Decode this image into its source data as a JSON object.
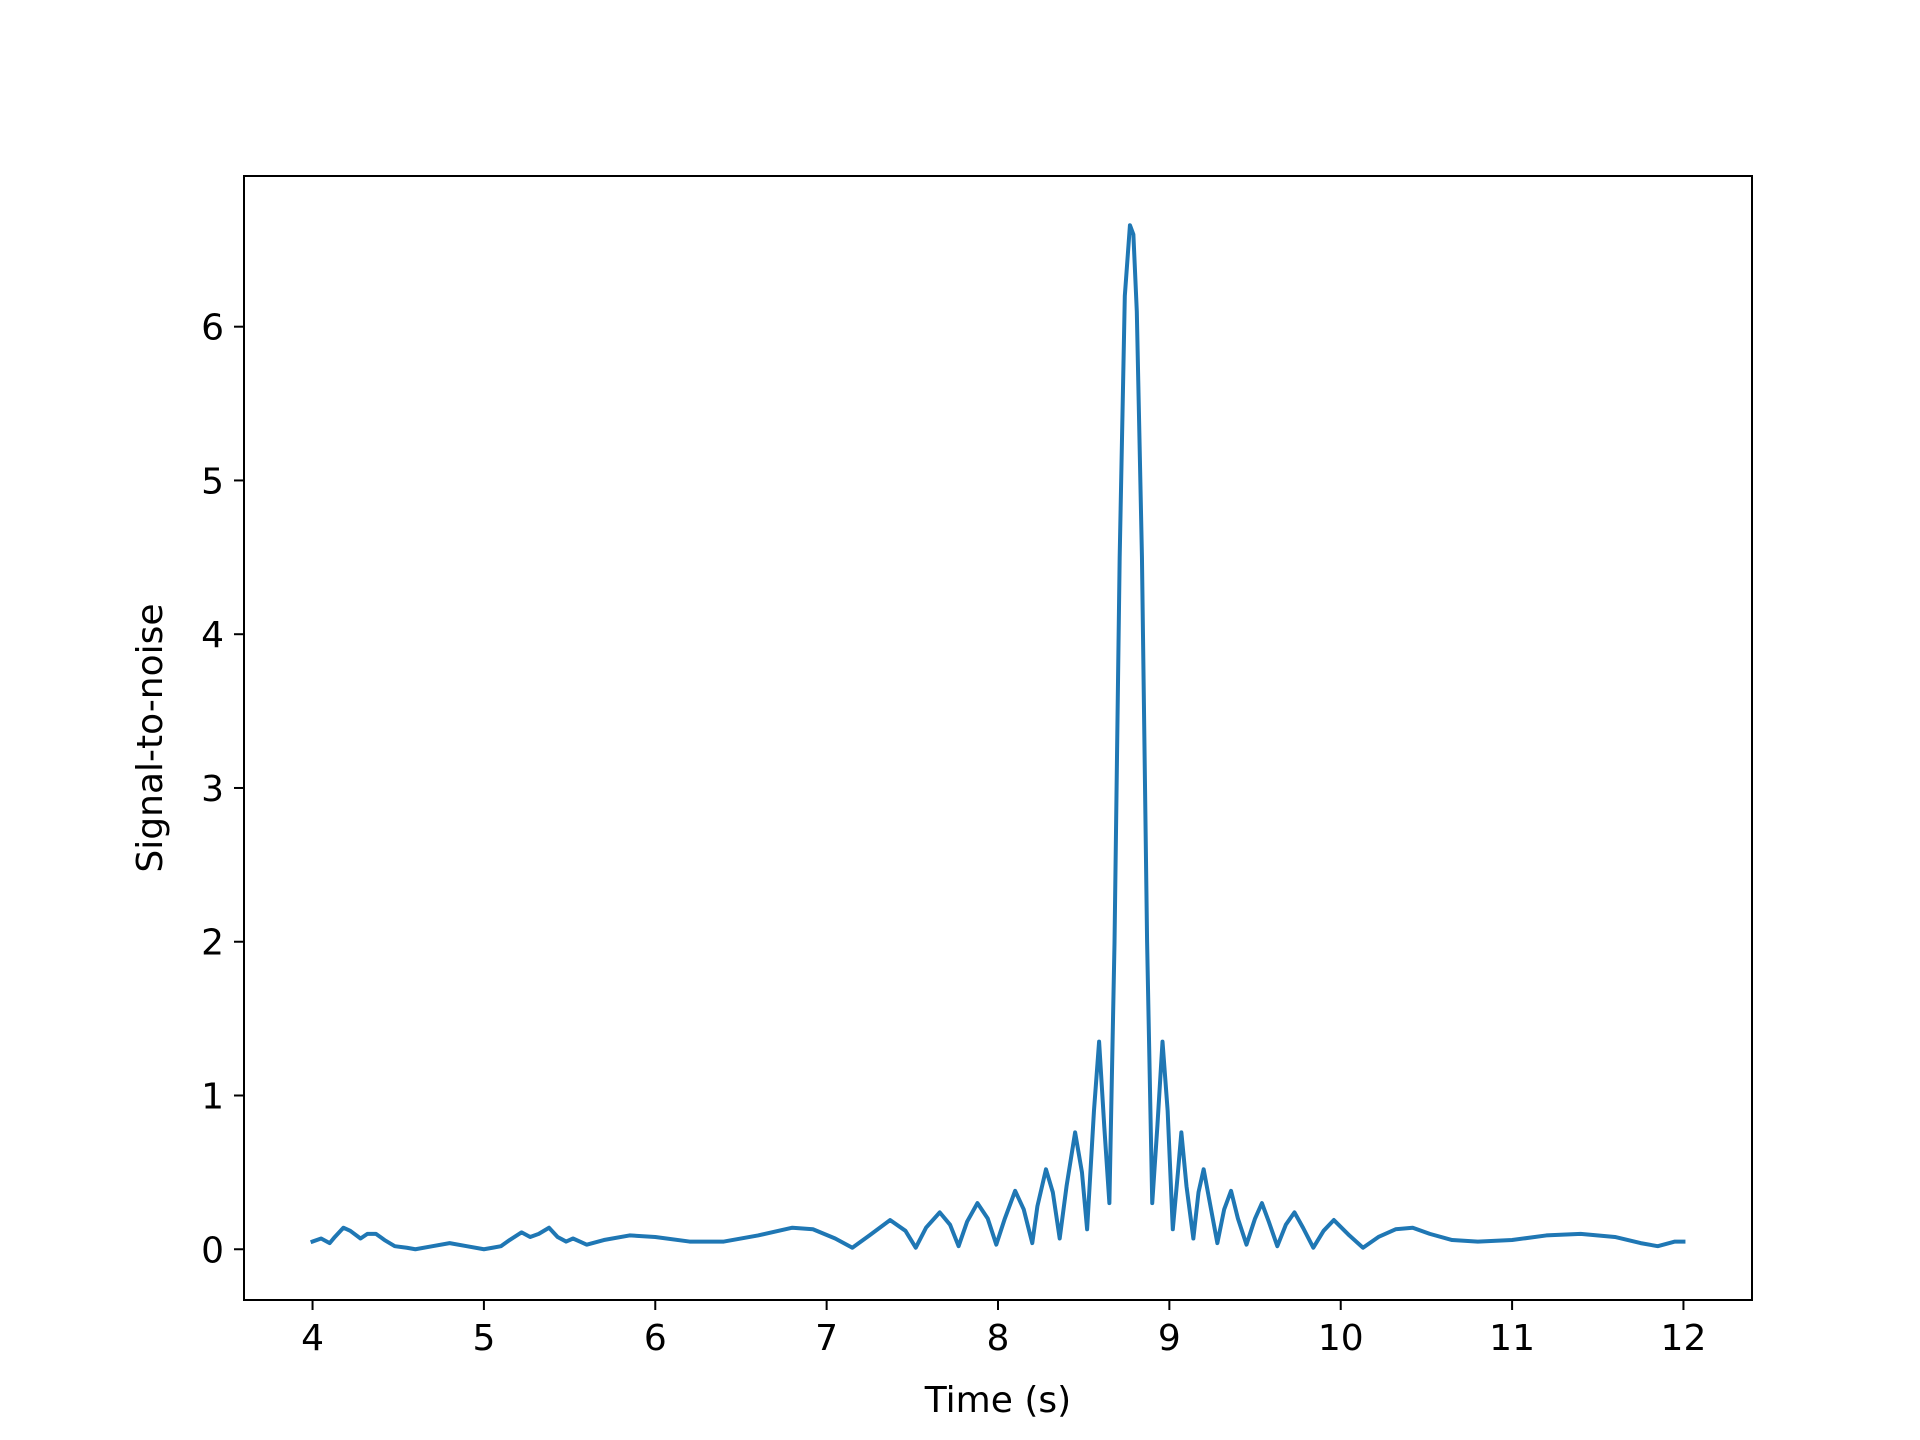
{
  "chart_data": {
    "type": "line",
    "title": "",
    "xlabel": "Time (s)",
    "ylabel": "Signal-to-noise",
    "xlim": [
      3.6,
      12.4
    ],
    "ylim": [
      -0.33,
      6.98
    ],
    "xticks": [
      4,
      5,
      6,
      7,
      8,
      9,
      10,
      11,
      12
    ],
    "xtick_labels": [
      "4",
      "5",
      "6",
      "7",
      "8",
      "9",
      "10",
      "11",
      "12"
    ],
    "yticks": [
      0,
      1,
      2,
      3,
      4,
      5,
      6
    ],
    "ytick_labels": [
      "0",
      "1",
      "2",
      "3",
      "4",
      "5",
      "6"
    ],
    "grid": false,
    "line_color": "#1f77b4",
    "series": [
      {
        "x": [
          4.0,
          4.05,
          4.1,
          4.13,
          4.18,
          4.22,
          4.28,
          4.32,
          4.37,
          4.42,
          4.48,
          4.55,
          4.6,
          4.7,
          4.8,
          4.9,
          5.0,
          5.05,
          5.1,
          5.15,
          5.22,
          5.27,
          5.32,
          5.38,
          5.43,
          5.48,
          5.52,
          5.56,
          5.6,
          5.7,
          5.85,
          6.0,
          6.2,
          6.4,
          6.6,
          6.8,
          6.92,
          7.05,
          7.15,
          7.25,
          7.37,
          7.46,
          7.52,
          7.58,
          7.66,
          7.72,
          7.77,
          7.82,
          7.88,
          7.94,
          7.99,
          8.04,
          8.1,
          8.15,
          8.2,
          8.23,
          8.28,
          8.32,
          8.36,
          8.4,
          8.45,
          8.49,
          8.52,
          8.56,
          8.59,
          8.62,
          8.65,
          8.68,
          8.71,
          8.74,
          8.77,
          8.79,
          8.81,
          8.84,
          8.87,
          8.9,
          8.93,
          8.96,
          8.99,
          9.02,
          9.05,
          9.07,
          9.1,
          9.14,
          9.17,
          9.2,
          9.24,
          9.28,
          9.32,
          9.36,
          9.4,
          9.45,
          9.5,
          9.54,
          9.58,
          9.63,
          9.68,
          9.73,
          9.78,
          9.84,
          9.9,
          9.96,
          10.05,
          10.13,
          10.22,
          10.32,
          10.42,
          10.52,
          10.65,
          10.8,
          11.0,
          11.2,
          11.4,
          11.6,
          11.75,
          11.85,
          11.95,
          12.0
        ],
        "y": [
          0.05,
          0.07,
          0.04,
          0.08,
          0.14,
          0.12,
          0.07,
          0.1,
          0.1,
          0.06,
          0.02,
          0.01,
          0.0,
          0.02,
          0.04,
          0.02,
          0.0,
          0.01,
          0.02,
          0.06,
          0.11,
          0.08,
          0.1,
          0.14,
          0.08,
          0.05,
          0.07,
          0.05,
          0.03,
          0.06,
          0.09,
          0.08,
          0.05,
          0.05,
          0.09,
          0.14,
          0.13,
          0.07,
          0.01,
          0.09,
          0.19,
          0.12,
          0.01,
          0.14,
          0.24,
          0.16,
          0.02,
          0.18,
          0.3,
          0.2,
          0.03,
          0.2,
          0.38,
          0.26,
          0.04,
          0.28,
          0.52,
          0.37,
          0.07,
          0.41,
          0.76,
          0.5,
          0.13,
          0.9,
          1.35,
          0.8,
          0.3,
          2.0,
          4.5,
          6.2,
          6.66,
          6.6,
          6.1,
          4.5,
          2.0,
          0.3,
          0.8,
          1.35,
          0.9,
          0.13,
          0.5,
          0.76,
          0.41,
          0.07,
          0.37,
          0.52,
          0.28,
          0.04,
          0.26,
          0.38,
          0.2,
          0.03,
          0.2,
          0.3,
          0.18,
          0.02,
          0.16,
          0.24,
          0.14,
          0.01,
          0.12,
          0.19,
          0.09,
          0.01,
          0.08,
          0.13,
          0.14,
          0.1,
          0.06,
          0.05,
          0.06,
          0.09,
          0.1,
          0.08,
          0.04,
          0.02,
          0.05,
          0.05
        ]
      }
    ]
  }
}
